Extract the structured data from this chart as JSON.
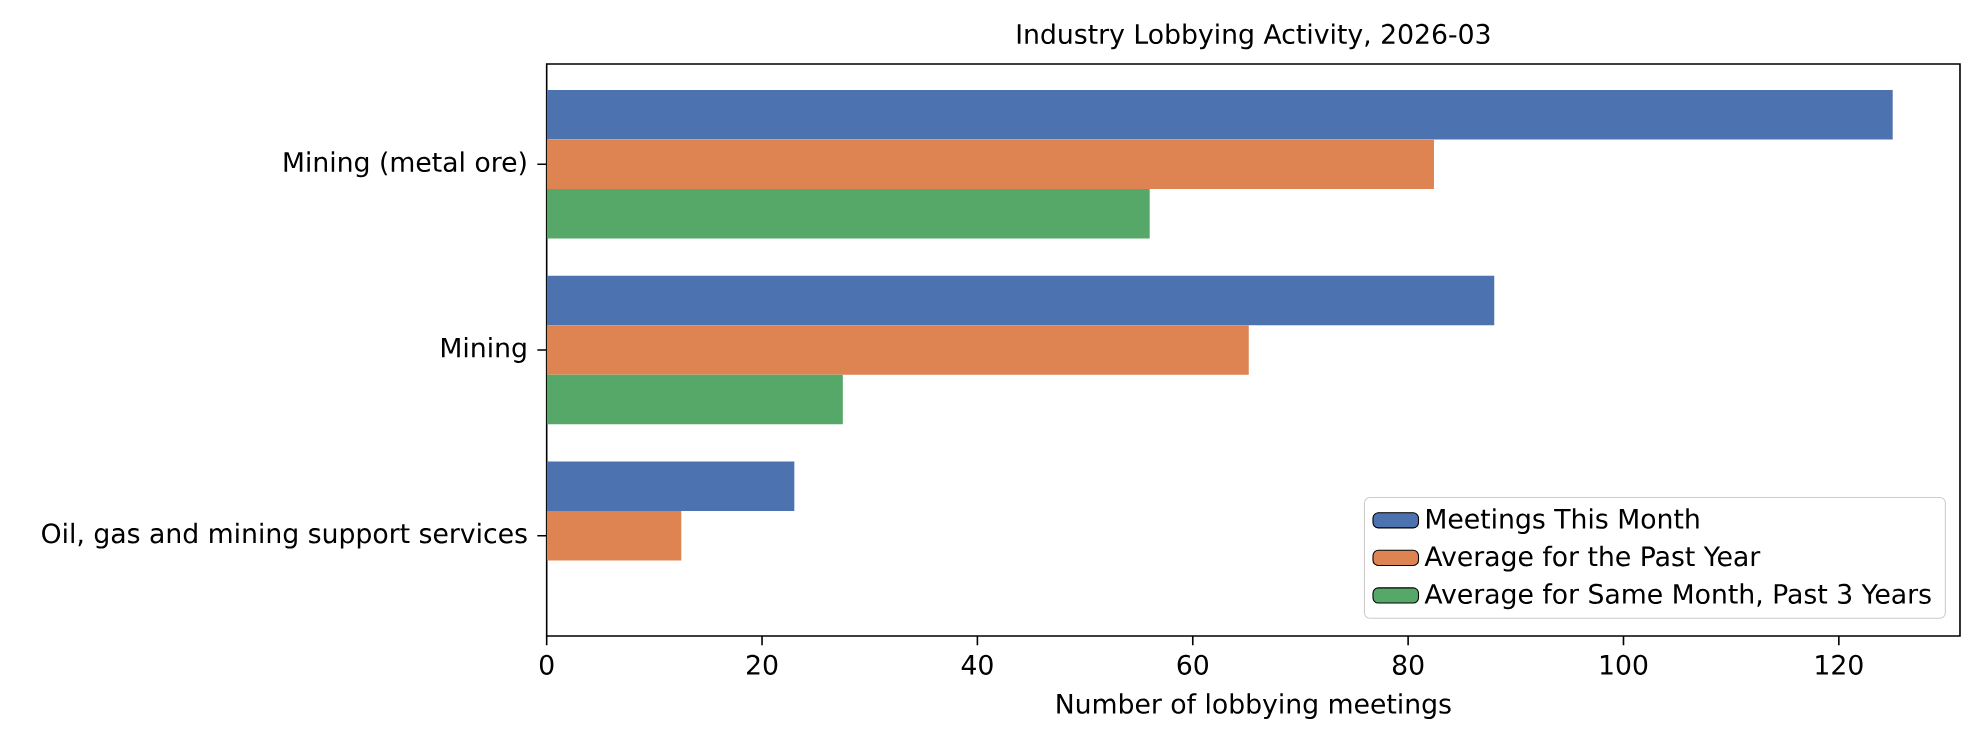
{
  "chart_data": {
    "type": "bar",
    "orientation": "horizontal",
    "title": "Industry Lobbying Activity, 2026-03",
    "xlabel": "Number of lobbying meetings",
    "categories": [
      "Mining (metal ore)",
      "Mining",
      "Oil, gas and mining support services"
    ],
    "series": [
      {
        "name": "Meetings This Month",
        "color": "#4c72b0",
        "values": [
          125,
          88,
          23
        ]
      },
      {
        "name": "Average for the Past Year",
        "color": "#dd8452",
        "values": [
          82.4,
          65.2,
          12.5
        ]
      },
      {
        "name": "Average for Same Month, Past 3 Years",
        "color": "#55a868",
        "values": [
          56,
          27.5,
          0
        ]
      }
    ],
    "xlim": [
      0,
      131.25
    ],
    "xticks": [
      0,
      20,
      40,
      60,
      80,
      100,
      120
    ],
    "grid": false,
    "legend": "bottom right"
  }
}
